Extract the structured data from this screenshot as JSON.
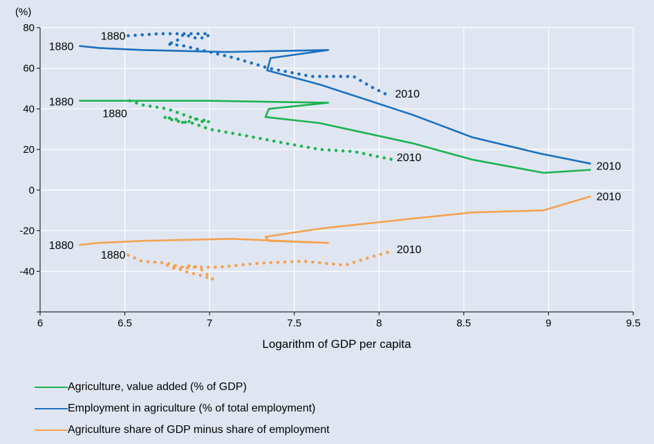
{
  "chart_data": {
    "type": "line",
    "xlabel": "Logarithm of GDP per capita",
    "ylabel": "(%)",
    "xlim": [
      6,
      9.5
    ],
    "ylim": [
      -60,
      80
    ],
    "x_ticks": [
      "6",
      "6.5",
      "7",
      "7.5",
      "8",
      "8.5",
      "9",
      "9.5"
    ],
    "y_ticks": [
      "80",
      "60",
      "40",
      "20",
      "0",
      "-20",
      "-40"
    ],
    "grid": true,
    "legend_position": "bottom",
    "series": [
      {
        "name": "Agriculture, value added (% of GDP)",
        "color": "#1db34f",
        "style": "solid",
        "points": [
          [
            6.23,
            44
          ],
          [
            7.0,
            44
          ],
          [
            7.7,
            43
          ],
          [
            7.35,
            40
          ],
          [
            7.33,
            36
          ],
          [
            7.65,
            33
          ],
          [
            8.2,
            23
          ],
          [
            8.55,
            15
          ],
          [
            8.97,
            8.5
          ],
          [
            9.25,
            10
          ]
        ]
      },
      {
        "name": "Employment in agriculture (% of total employment)",
        "color": "#1a6fbf",
        "style": "solid",
        "points": [
          [
            6.23,
            71
          ],
          [
            6.35,
            70
          ],
          [
            6.6,
            69
          ],
          [
            7.1,
            68
          ],
          [
            7.7,
            69
          ],
          [
            7.36,
            65
          ],
          [
            7.34,
            59
          ],
          [
            7.65,
            52
          ],
          [
            8.2,
            37
          ],
          [
            8.55,
            26
          ],
          [
            8.95,
            18
          ],
          [
            9.25,
            13
          ]
        ]
      },
      {
        "name": "Agriculture share of GDP minus share of employment",
        "color": "#f5a14f",
        "style": "solid",
        "points": [
          [
            6.23,
            -27
          ],
          [
            6.35,
            -26
          ],
          [
            6.6,
            -25
          ],
          [
            7.13,
            -24
          ],
          [
            7.7,
            -26
          ],
          [
            7.35,
            -25
          ],
          [
            7.33,
            -23
          ],
          [
            7.65,
            -19
          ],
          [
            8.2,
            -14
          ],
          [
            8.55,
            -11
          ],
          [
            8.97,
            -10
          ],
          [
            9.25,
            -3
          ]
        ]
      },
      {
        "color": "#1a6fbf",
        "style": "dotted",
        "points": [
          [
            6.52,
            76
          ],
          [
            6.7,
            77
          ],
          [
            6.9,
            77
          ],
          [
            7.0,
            77
          ],
          [
            6.98,
            75
          ],
          [
            6.9,
            75
          ],
          [
            6.85,
            77
          ],
          [
            6.8,
            73
          ],
          [
            6.75,
            72
          ],
          [
            6.85,
            71
          ],
          [
            6.9,
            70
          ],
          [
            7.0,
            68
          ],
          [
            7.15,
            65
          ],
          [
            7.35,
            60
          ],
          [
            7.6,
            56
          ],
          [
            7.85,
            56
          ],
          [
            7.95,
            51
          ],
          [
            8.07,
            46
          ]
        ]
      },
      {
        "color": "#1db34f",
        "style": "dotted",
        "points": [
          [
            6.53,
            44
          ],
          [
            6.6,
            42
          ],
          [
            6.75,
            40
          ],
          [
            6.85,
            37
          ],
          [
            6.92,
            35
          ],
          [
            7.0,
            34
          ],
          [
            6.98,
            33
          ],
          [
            6.92,
            35
          ],
          [
            6.85,
            33
          ],
          [
            6.8,
            35
          ],
          [
            6.73,
            36
          ],
          [
            6.8,
            34
          ],
          [
            6.9,
            33
          ],
          [
            7.0,
            30
          ],
          [
            7.2,
            27
          ],
          [
            7.45,
            23
          ],
          [
            7.65,
            20
          ],
          [
            7.85,
            19
          ],
          [
            8.08,
            15
          ]
        ]
      },
      {
        "color": "#f5a14f",
        "style": "dotted",
        "points": [
          [
            6.52,
            -32
          ],
          [
            6.6,
            -35
          ],
          [
            6.75,
            -36
          ],
          [
            6.83,
            -38
          ],
          [
            6.9,
            -37
          ],
          [
            6.95,
            -39
          ],
          [
            7.02,
            -44
          ],
          [
            6.95,
            -42
          ],
          [
            6.85,
            -40
          ],
          [
            6.8,
            -38
          ],
          [
            6.75,
            -37
          ],
          [
            6.8,
            -39
          ],
          [
            6.9,
            -38
          ],
          [
            7.05,
            -38
          ],
          [
            7.3,
            -36
          ],
          [
            7.55,
            -35
          ],
          [
            7.8,
            -37
          ],
          [
            7.95,
            -33
          ],
          [
            8.08,
            -30
          ]
        ]
      }
    ],
    "annotations": [
      {
        "text": "1880",
        "x": 6.23,
        "y": 71
      },
      {
        "text": "1880",
        "x": 6.52,
        "y": 76
      },
      {
        "text": "2010",
        "x": 8.07,
        "y": 46
      },
      {
        "text": "1880",
        "x": 6.23,
        "y": 44
      },
      {
        "text": "1880",
        "x": 6.53,
        "y": 44
      },
      {
        "text": "2010",
        "x": 8.08,
        "y": 15
      },
      {
        "text": "2010",
        "x": 9.25,
        "y": 12
      },
      {
        "text": "2010",
        "x": 9.25,
        "y": -3
      },
      {
        "text": "1880",
        "x": 6.23,
        "y": -27
      },
      {
        "text": "1880",
        "x": 6.52,
        "y": -32
      },
      {
        "text": "2010",
        "x": 8.08,
        "y": -30
      }
    ]
  }
}
